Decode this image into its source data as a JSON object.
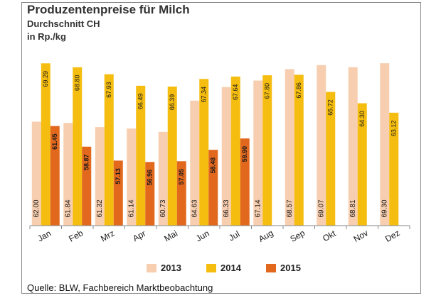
{
  "title": "Produzentenpreise für Milch",
  "subtitle": "Durchschnitt CH",
  "unit_label": "in Rp./kg",
  "source": "Quelle: BLW, Fachbereich Marktbeobachtung",
  "colors": {
    "2013": "#f7cfb0",
    "2014": "#f5bd0f",
    "2015": "#e2681d"
  },
  "chart_data": {
    "type": "bar",
    "title": "Produzentenpreise für Milch",
    "subtitle": "Durchschnitt CH",
    "ylabel": "in Rp./kg",
    "xlabel": "",
    "ylim": [
      49,
      71
    ],
    "grid": false,
    "legend": "bottom",
    "categories": [
      "Jan",
      "Feb",
      "Mrz",
      "Apr",
      "Mai",
      "Jun",
      "Jul",
      "Aug",
      "Sep",
      "Okt",
      "Nov",
      "Dez"
    ],
    "series": [
      {
        "name": "2013",
        "values": [
          62.0,
          61.84,
          61.32,
          61.14,
          60.73,
          64.63,
          66.33,
          67.14,
          68.57,
          69.07,
          68.81,
          69.3
        ],
        "labels": [
          "62.00",
          "61.84",
          "61.32",
          "61.14",
          "60.73",
          "64.63",
          "66.33",
          "67.14",
          "68.57",
          "69.07",
          "68.81",
          "69.30"
        ]
      },
      {
        "name": "2014",
        "values": [
          69.29,
          68.8,
          67.93,
          66.49,
          66.39,
          67.34,
          67.64,
          67.8,
          67.86,
          65.72,
          64.3,
          63.12
        ],
        "labels": [
          "69.29",
          "68.80",
          "67.93",
          "66.49",
          "66.39",
          "67.34",
          "67.64",
          "67.80",
          "67.86",
          "65.72",
          "64.30",
          "63.12"
        ]
      },
      {
        "name": "2015",
        "values": [
          61.45,
          58.87,
          57.13,
          56.96,
          57.05,
          58.48,
          59.9,
          null,
          null,
          null,
          null,
          null
        ],
        "labels": [
          "61.45",
          "58.87",
          "57.13",
          "56.96",
          "57.05",
          "58.48",
          "59.90",
          null,
          null,
          null,
          null,
          null
        ]
      }
    ]
  }
}
